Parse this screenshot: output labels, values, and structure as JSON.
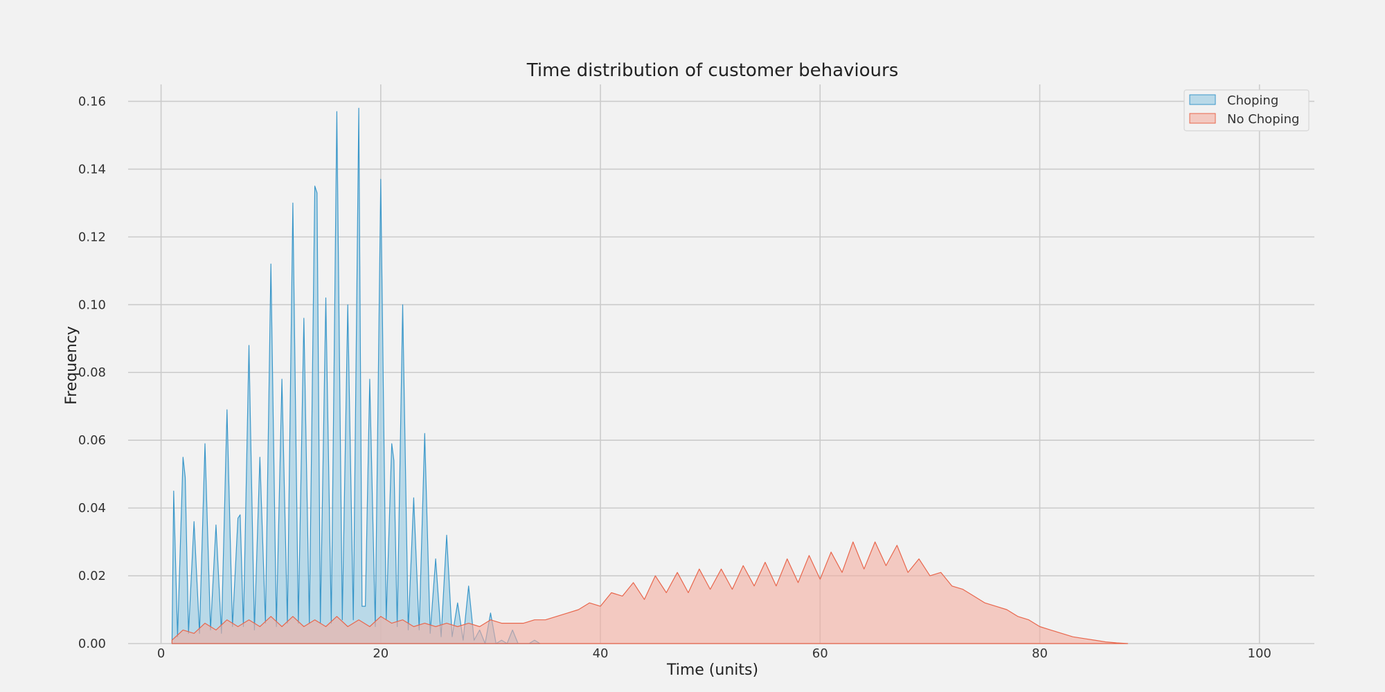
{
  "chart_data": {
    "type": "area",
    "title": "Time distribution of customer behaviours",
    "xlabel": "Time (units)",
    "ylabel": "Frequency",
    "xlim": [
      -3,
      105
    ],
    "ylim": [
      0,
      0.165
    ],
    "xticks": [
      0,
      20,
      40,
      60,
      80,
      100
    ],
    "yticks": [
      0.0,
      0.02,
      0.04,
      0.06,
      0.08,
      0.1,
      0.12,
      0.14,
      0.16
    ],
    "ytick_labels": [
      "0.00",
      "0.02",
      "0.04",
      "0.06",
      "0.08",
      "0.10",
      "0.12",
      "0.14",
      "0.16"
    ],
    "grid": true,
    "legend_position": "top-right",
    "series": [
      {
        "name": "Choping",
        "fill": "#a6d0e4",
        "stroke": "#3a97c9",
        "opacity": 0.75,
        "points": [
          [
            1,
            0.0
          ],
          [
            1.15,
            0.045
          ],
          [
            1.5,
            0.002
          ],
          [
            2,
            0.055
          ],
          [
            2.2,
            0.049
          ],
          [
            2.5,
            0.003
          ],
          [
            3,
            0.036
          ],
          [
            3.5,
            0.003
          ],
          [
            4,
            0.059
          ],
          [
            4.5,
            0.004
          ],
          [
            5,
            0.035
          ],
          [
            5.5,
            0.003
          ],
          [
            6,
            0.069
          ],
          [
            6.5,
            0.005
          ],
          [
            7,
            0.037
          ],
          [
            7.2,
            0.038
          ],
          [
            7.5,
            0.005
          ],
          [
            8,
            0.088
          ],
          [
            8.5,
            0.004
          ],
          [
            9,
            0.055
          ],
          [
            9.5,
            0.006
          ],
          [
            10,
            0.112
          ],
          [
            10.5,
            0.005
          ],
          [
            11,
            0.078
          ],
          [
            11.5,
            0.006
          ],
          [
            12,
            0.13
          ],
          [
            12.5,
            0.006
          ],
          [
            13,
            0.096
          ],
          [
            13.5,
            0.006
          ],
          [
            14,
            0.135
          ],
          [
            14.2,
            0.133
          ],
          [
            14.5,
            0.006
          ],
          [
            15,
            0.102
          ],
          [
            15.5,
            0.006
          ],
          [
            16,
            0.157
          ],
          [
            16.5,
            0.007
          ],
          [
            17,
            0.1
          ],
          [
            17.5,
            0.007
          ],
          [
            18,
            0.158
          ],
          [
            18.3,
            0.011
          ],
          [
            18.6,
            0.011
          ],
          [
            19,
            0.078
          ],
          [
            19.5,
            0.005
          ],
          [
            20,
            0.137
          ],
          [
            20.5,
            0.007
          ],
          [
            21,
            0.059
          ],
          [
            21.2,
            0.054
          ],
          [
            21.5,
            0.005
          ],
          [
            22,
            0.1
          ],
          [
            22.5,
            0.004
          ],
          [
            23,
            0.043
          ],
          [
            23.5,
            0.004
          ],
          [
            24,
            0.062
          ],
          [
            24.5,
            0.003
          ],
          [
            25,
            0.025
          ],
          [
            25.5,
            0.002
          ],
          [
            26,
            0.032
          ],
          [
            26.5,
            0.002
          ],
          [
            27,
            0.012
          ],
          [
            27.5,
            0.001
          ],
          [
            28,
            0.017
          ],
          [
            28.5,
            0.001
          ],
          [
            29,
            0.004
          ],
          [
            29.5,
            0.0
          ],
          [
            30,
            0.009
          ],
          [
            30.5,
            0.0
          ],
          [
            31,
            0.001
          ],
          [
            31.5,
            0.0
          ],
          [
            32,
            0.004
          ],
          [
            32.5,
            0.0
          ],
          [
            33.5,
            0.0
          ],
          [
            34,
            0.001
          ],
          [
            34.5,
            0.0
          ]
        ]
      },
      {
        "name": "No Choping",
        "fill": "#f4aea0",
        "stroke": "#e8664c",
        "opacity": 0.6,
        "points": [
          [
            1,
            0.001
          ],
          [
            2,
            0.004
          ],
          [
            3,
            0.003
          ],
          [
            4,
            0.006
          ],
          [
            5,
            0.004
          ],
          [
            6,
            0.007
          ],
          [
            7,
            0.005
          ],
          [
            8,
            0.007
          ],
          [
            9,
            0.005
          ],
          [
            10,
            0.008
          ],
          [
            11,
            0.005
          ],
          [
            12,
            0.008
          ],
          [
            13,
            0.005
          ],
          [
            14,
            0.007
          ],
          [
            15,
            0.005
          ],
          [
            16,
            0.008
          ],
          [
            17,
            0.005
          ],
          [
            18,
            0.007
          ],
          [
            19,
            0.005
          ],
          [
            20,
            0.008
          ],
          [
            21,
            0.006
          ],
          [
            22,
            0.007
          ],
          [
            23,
            0.005
          ],
          [
            24,
            0.006
          ],
          [
            25,
            0.005
          ],
          [
            26,
            0.006
          ],
          [
            27,
            0.005
          ],
          [
            28,
            0.006
          ],
          [
            29,
            0.005
          ],
          [
            30,
            0.007
          ],
          [
            31,
            0.006
          ],
          [
            32,
            0.006
          ],
          [
            33,
            0.006
          ],
          [
            34,
            0.007
          ],
          [
            35,
            0.007
          ],
          [
            36,
            0.008
          ],
          [
            37,
            0.009
          ],
          [
            38,
            0.01
          ],
          [
            39,
            0.012
          ],
          [
            40,
            0.011
          ],
          [
            41,
            0.015
          ],
          [
            42,
            0.014
          ],
          [
            43,
            0.018
          ],
          [
            44,
            0.013
          ],
          [
            45,
            0.02
          ],
          [
            46,
            0.015
          ],
          [
            47,
            0.021
          ],
          [
            48,
            0.015
          ],
          [
            49,
            0.022
          ],
          [
            50,
            0.016
          ],
          [
            51,
            0.022
          ],
          [
            52,
            0.016
          ],
          [
            53,
            0.023
          ],
          [
            54,
            0.017
          ],
          [
            55,
            0.024
          ],
          [
            56,
            0.017
          ],
          [
            57,
            0.025
          ],
          [
            58,
            0.018
          ],
          [
            59,
            0.026
          ],
          [
            60,
            0.019
          ],
          [
            61,
            0.027
          ],
          [
            62,
            0.021
          ],
          [
            63,
            0.03
          ],
          [
            64,
            0.022
          ],
          [
            65,
            0.03
          ],
          [
            66,
            0.023
          ],
          [
            67,
            0.029
          ],
          [
            68,
            0.021
          ],
          [
            69,
            0.025
          ],
          [
            70,
            0.02
          ],
          [
            71,
            0.021
          ],
          [
            72,
            0.017
          ],
          [
            73,
            0.016
          ],
          [
            74,
            0.014
          ],
          [
            75,
            0.012
          ],
          [
            76,
            0.011
          ],
          [
            77,
            0.01
          ],
          [
            78,
            0.008
          ],
          [
            79,
            0.007
          ],
          [
            80,
            0.005
          ],
          [
            81,
            0.004
          ],
          [
            82,
            0.003
          ],
          [
            83,
            0.002
          ],
          [
            84,
            0.0015
          ],
          [
            85,
            0.001
          ],
          [
            86,
            0.0005
          ],
          [
            87,
            0.0002
          ],
          [
            88,
            0.0
          ]
        ]
      }
    ]
  }
}
